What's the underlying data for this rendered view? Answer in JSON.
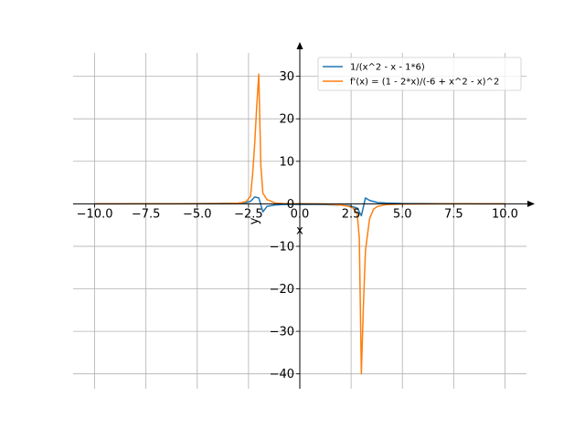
{
  "chart_data": {
    "type": "line",
    "xlabel": "x",
    "ylabel": "y",
    "xlim": [
      -11.05,
      11.05
    ],
    "ylim": [
      -43.5,
      35.5
    ],
    "x_ticks": [
      -10.0,
      -7.5,
      -5.0,
      -2.5,
      0.0,
      2.5,
      5.0,
      7.5,
      10.0
    ],
    "x_tick_labels": [
      "−10.0",
      "−7.5",
      "−5.0",
      "−2.5",
      "0.0",
      "2.5",
      "5.0",
      "7.5",
      "10.0"
    ],
    "y_ticks": [
      -40,
      -30,
      -20,
      -10,
      0,
      10,
      20,
      30
    ],
    "y_tick_labels": [
      "−40",
      "−30",
      "−20",
      "−10",
      "0",
      "10",
      "20",
      "30"
    ],
    "grid": true,
    "legend_position": "top-right",
    "series": [
      {
        "name": "1/(x^2 - x - 1*6)",
        "color": "#1f77b4",
        "x": [
          -10.0,
          -9.0,
          -8.0,
          -7.0,
          -6.0,
          -5.0,
          -4.0,
          -3.5,
          -3.0,
          -2.6,
          -2.4,
          -2.2,
          -2.0,
          -1.8,
          -1.6,
          -1.2,
          -0.8,
          -0.4,
          0.0,
          0.4,
          0.8,
          1.2,
          1.6,
          2.0,
          2.4,
          2.8,
          3.0,
          3.2,
          3.4,
          3.8,
          4.2,
          5.0,
          6.0,
          7.0,
          8.0,
          9.0,
          10.0
        ],
        "y": [
          0.01,
          0.01,
          0.02,
          0.02,
          0.03,
          0.04,
          0.07,
          0.1,
          0.17,
          0.32,
          0.6,
          1.6,
          1.4,
          -1.9,
          -0.6,
          -0.26,
          -0.17,
          -0.15,
          -0.17,
          -0.16,
          -0.16,
          -0.19,
          -0.23,
          -0.3,
          -0.4,
          -1.0,
          -2.8,
          1.4,
          0.8,
          0.3,
          0.18,
          0.07,
          0.04,
          0.03,
          0.02,
          0.01,
          0.01
        ]
      },
      {
        "name": "f'(x) = (1 - 2*x)/(-6 + x^2 - x)^2",
        "color": "#ff7f0e",
        "x": [
          -10.0,
          -9.0,
          -8.0,
          -7.0,
          -6.0,
          -5.0,
          -4.0,
          -3.5,
          -3.0,
          -2.8,
          -2.6,
          -2.4,
          -2.3,
          -2.2,
          -2.1,
          -2.0,
          -1.9,
          -1.8,
          -1.6,
          -1.2,
          -0.8,
          -0.4,
          0.0,
          0.4,
          0.8,
          1.2,
          1.6,
          2.0,
          2.4,
          2.6,
          2.8,
          2.9,
          3.0,
          3.1,
          3.2,
          3.4,
          3.6,
          3.8,
          4.2,
          5.0,
          6.0,
          7.0,
          8.0,
          9.0,
          10.0
        ],
        "y": [
          0.0,
          0.0,
          0.0,
          0.01,
          0.01,
          0.02,
          0.04,
          0.08,
          0.17,
          0.3,
          0.6,
          1.8,
          7.0,
          14.0,
          23.0,
          30.5,
          9.0,
          2.5,
          1.0,
          0.2,
          0.05,
          0.0,
          0.03,
          0.0,
          -0.02,
          -0.05,
          -0.12,
          -0.3,
          -0.6,
          -1.0,
          -2.5,
          -8.0,
          -40.0,
          -24.0,
          -11.0,
          -3.5,
          -1.2,
          -0.6,
          -0.2,
          -0.05,
          -0.02,
          -0.01,
          -0.0,
          -0.0,
          -0.0
        ]
      }
    ]
  }
}
